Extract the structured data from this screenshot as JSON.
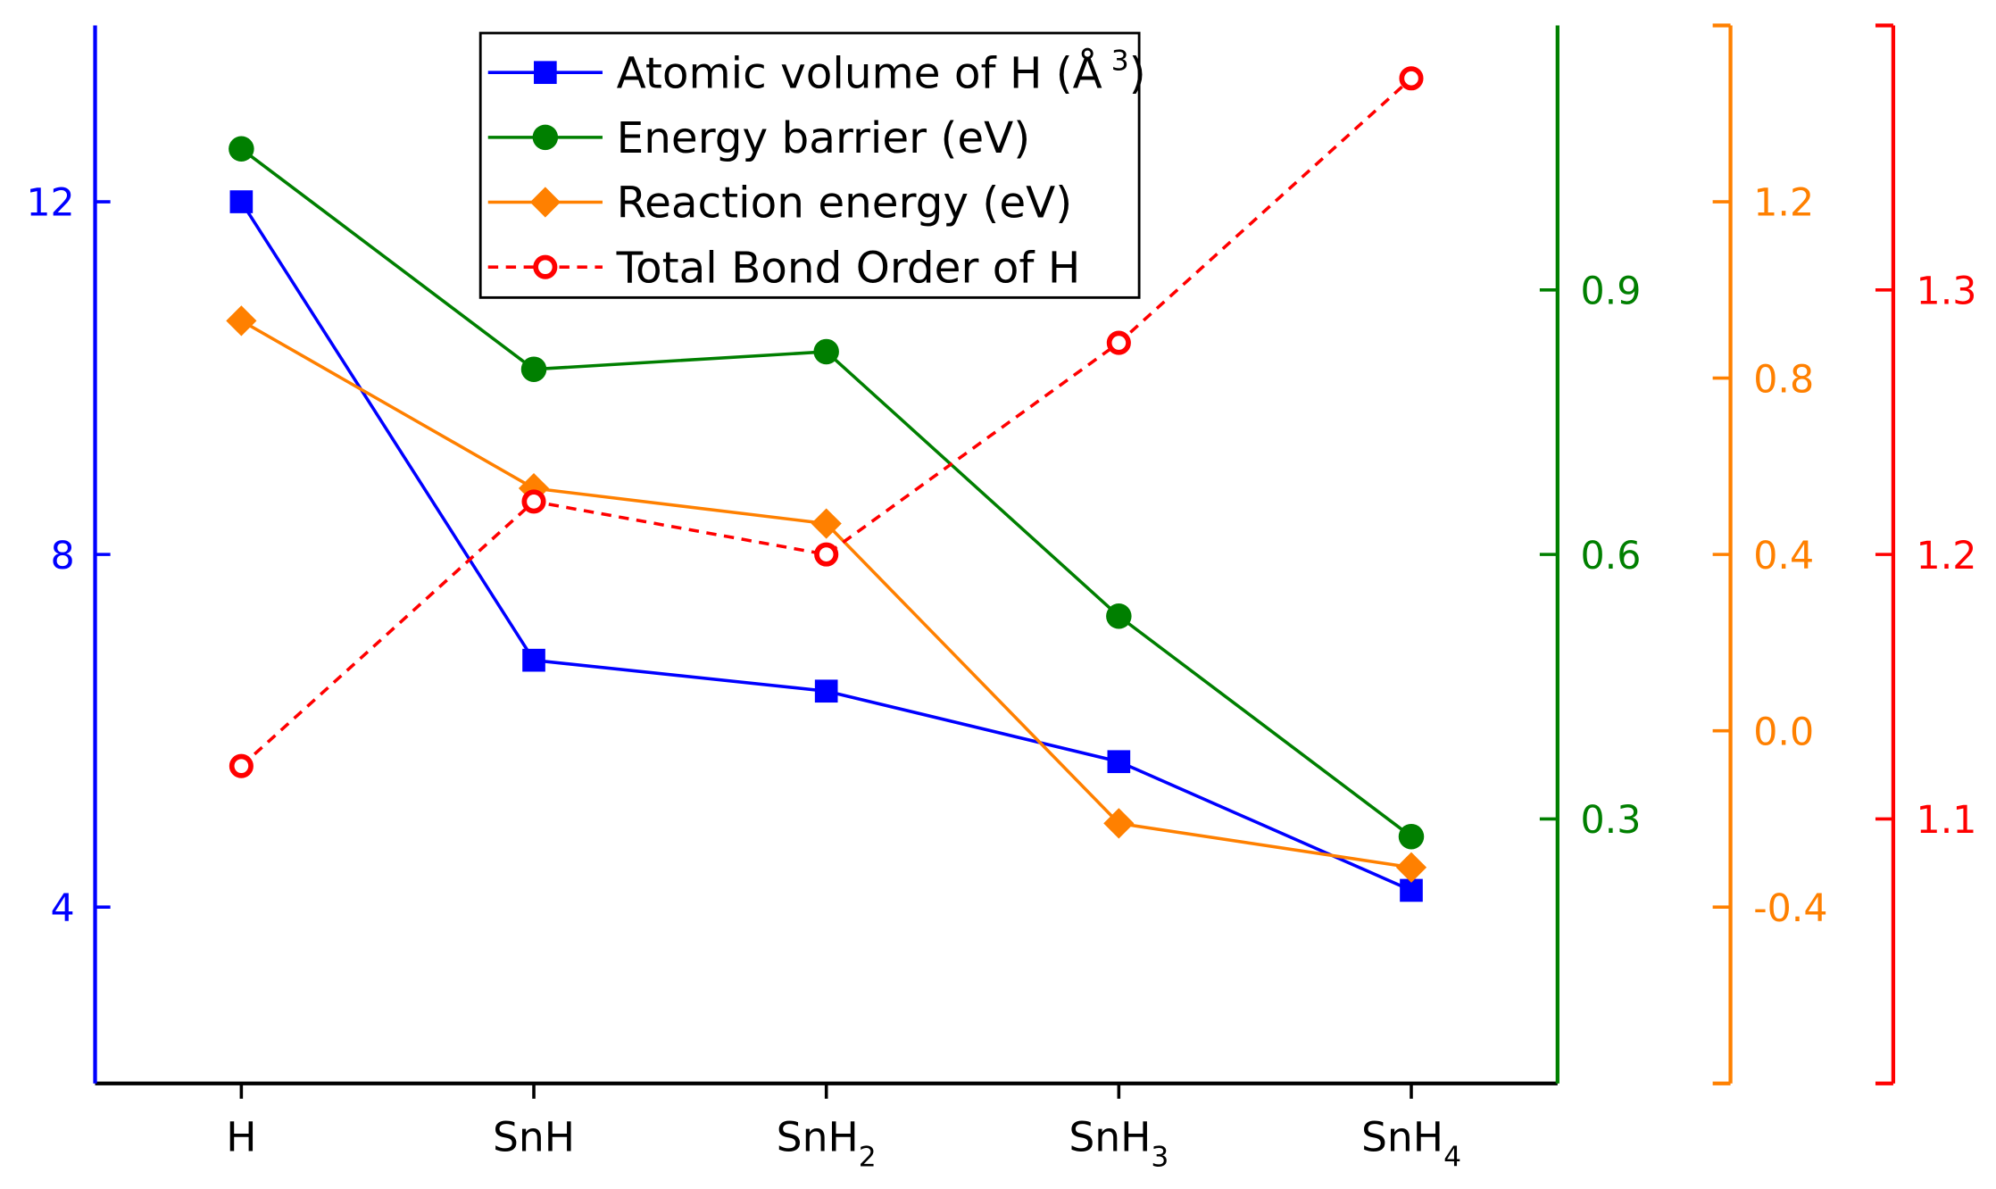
{
  "chart_data": {
    "type": "line",
    "categories": [
      "H",
      "SnH",
      "SnH2",
      "SnH3",
      "SnH4"
    ],
    "category_labels": [
      {
        "base": "H",
        "sub": ""
      },
      {
        "base": "SnH",
        "sub": ""
      },
      {
        "base": "SnH",
        "sub": "2"
      },
      {
        "base": "SnH",
        "sub": "3"
      },
      {
        "base": "SnH",
        "sub": "4"
      }
    ],
    "legend_position": "top-center",
    "series": [
      {
        "name": "Atomic volume of H (Å 3)",
        "legend": "Atomic volume of H (Å",
        "legend_sup": "3",
        "legend_close": ")",
        "color": "#0000ff",
        "marker": "square",
        "dash": false,
        "axis": "left",
        "values": [
          12.0,
          6.8,
          6.45,
          5.65,
          4.19
        ]
      },
      {
        "name": "Energy barrier (eV)",
        "legend": "Energy barrier (eV)",
        "color": "#007f00",
        "marker": "circle",
        "dash": false,
        "axis": "right1",
        "values": [
          1.06,
          0.81,
          0.83,
          0.53,
          0.28
        ]
      },
      {
        "name": "Reaction energy (eV)",
        "legend": "Reaction energy (eV)",
        "color": "#ff8000",
        "marker": "diamond",
        "dash": false,
        "axis": "right2",
        "values": [
          0.93,
          0.55,
          0.47,
          -0.21,
          -0.31
        ]
      },
      {
        "name": "Total Bond Order of H",
        "legend": "Total Bond Order of H",
        "color": "#ff0000",
        "marker": "open-circle",
        "dash": true,
        "axis": "right3",
        "values": [
          1.12,
          1.22,
          1.2,
          1.28,
          1.38
        ]
      }
    ],
    "axes": {
      "left": {
        "color": "#0000ff",
        "ylim": [
          2,
          14
        ],
        "ticks": [
          4,
          8,
          12
        ],
        "labels": [
          "4",
          "8",
          "12"
        ]
      },
      "right1": {
        "color": "#007f00",
        "ylim": [
          0,
          1.2
        ],
        "ticks": [
          0.3,
          0.6,
          0.9
        ],
        "labels": [
          "0.3",
          "0.6",
          "0.9"
        ]
      },
      "right2": {
        "color": "#ff8000",
        "ylim": [
          -0.8,
          1.6
        ],
        "ticks": [
          -0.4,
          0.0,
          0.4,
          0.8,
          1.2
        ],
        "labels": [
          "-0.4",
          "0.0",
          "0.4",
          "0.8",
          "1.2"
        ]
      },
      "right3": {
        "color": "#ff0000",
        "ylim": [
          1.0,
          1.4
        ],
        "ticks": [
          1.1,
          1.2,
          1.3
        ],
        "labels": [
          "1.1",
          "1.2",
          "1.3"
        ]
      }
    }
  }
}
